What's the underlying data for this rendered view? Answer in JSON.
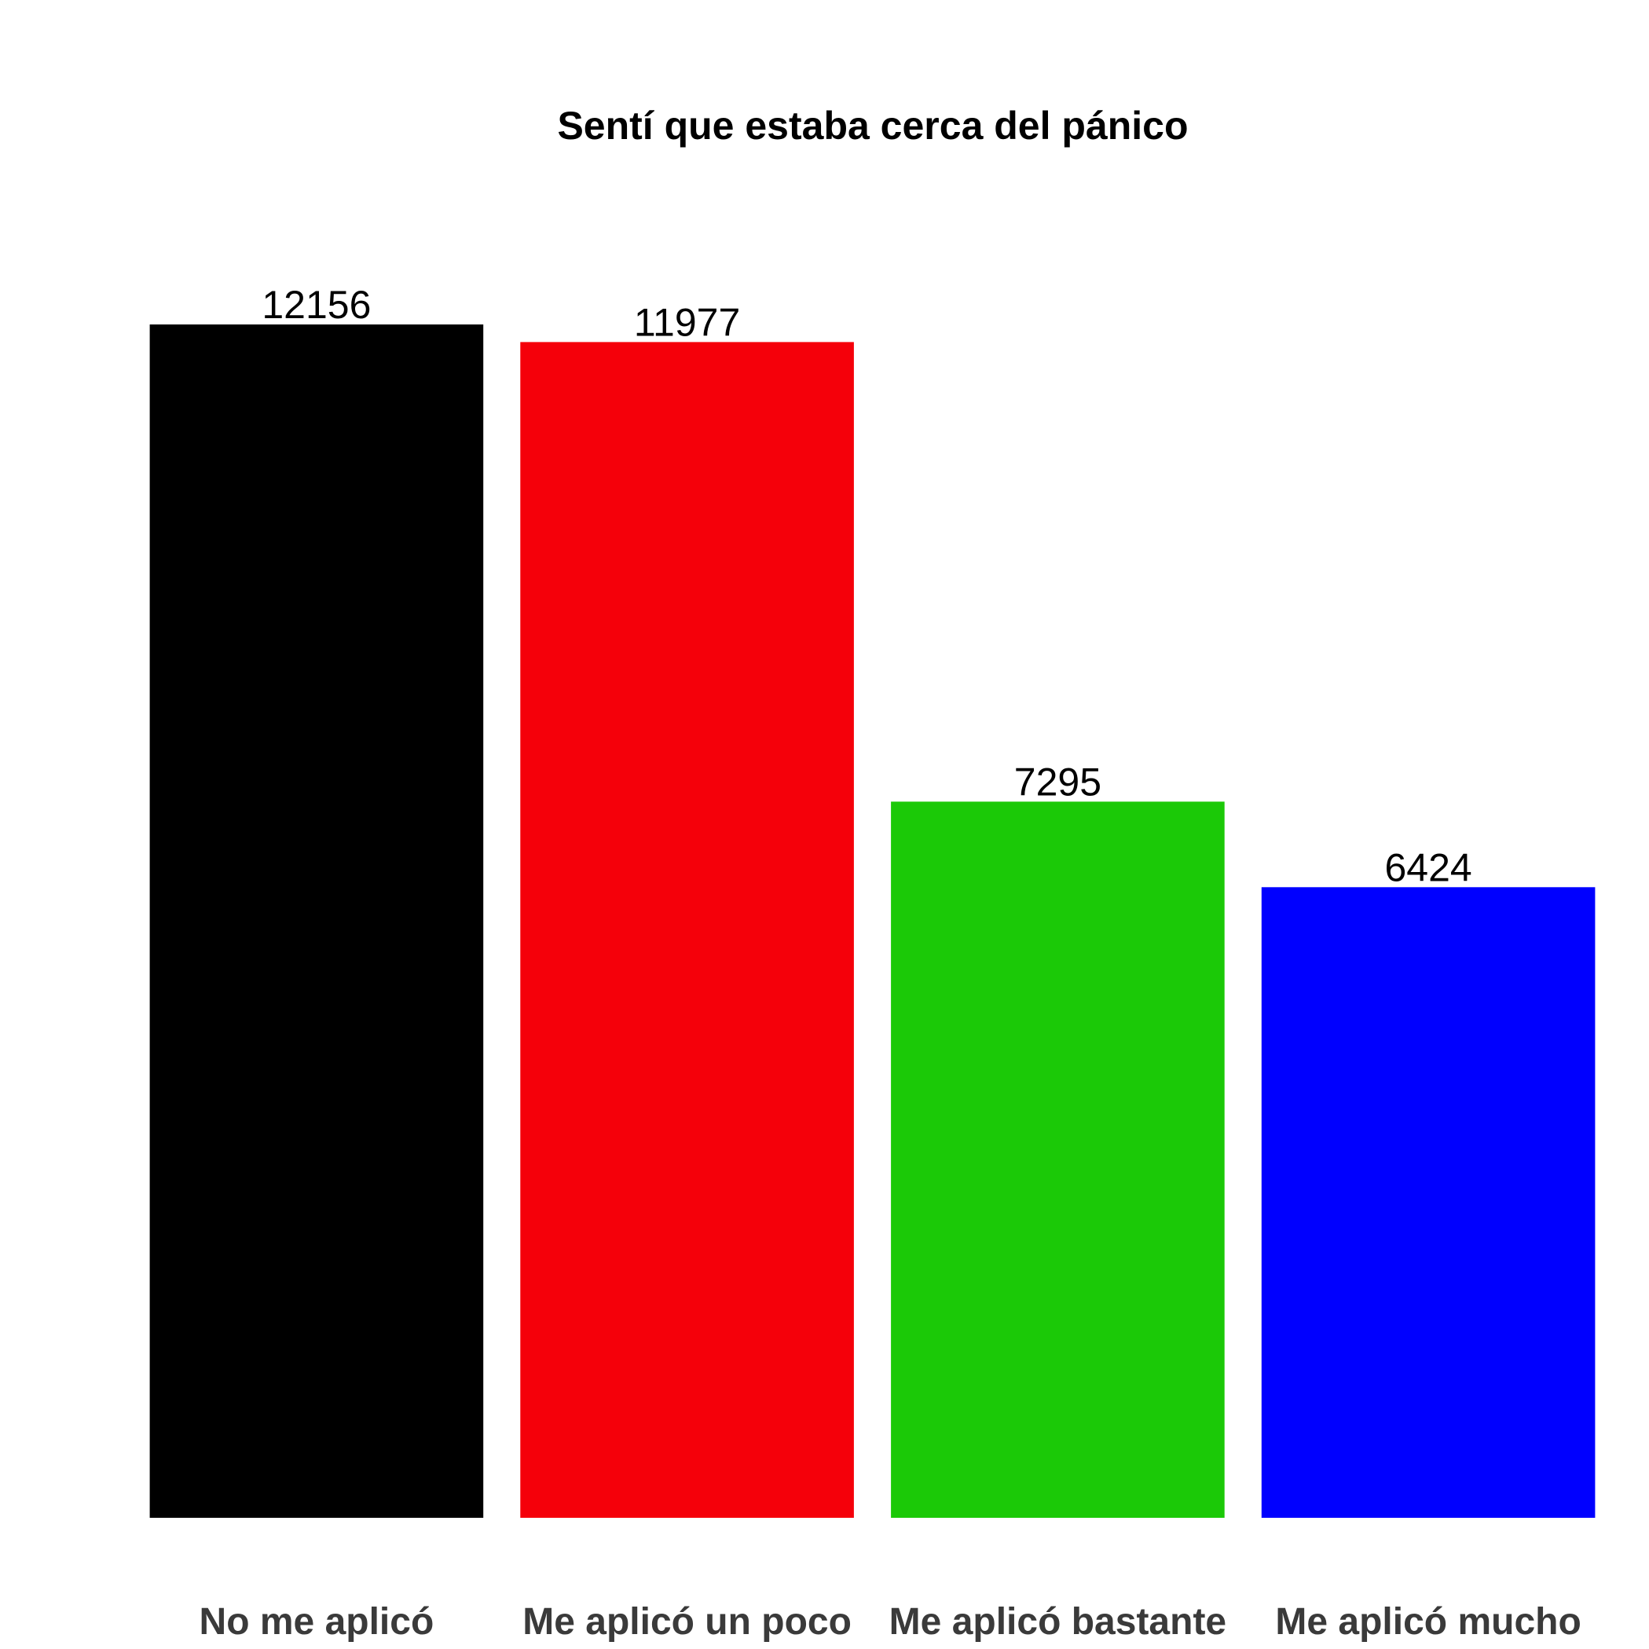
{
  "chart_data": {
    "type": "bar",
    "title": "Sentí que estaba cerca del pánico",
    "xlabel": "",
    "ylabel": "",
    "categories": [
      "No me aplicó",
      "Me aplicó un poco",
      "Me aplicó bastante",
      "Me aplicó mucho"
    ],
    "values": [
      12156,
      11977,
      7295,
      6424
    ],
    "value_labels": [
      "12156",
      "11977",
      "7295",
      "6424"
    ],
    "colors": [
      "#000000",
      "#f5000a",
      "#1bc907",
      "#0000ff"
    ],
    "ylim": [
      0,
      12156
    ],
    "grid": false,
    "legend": "none"
  }
}
